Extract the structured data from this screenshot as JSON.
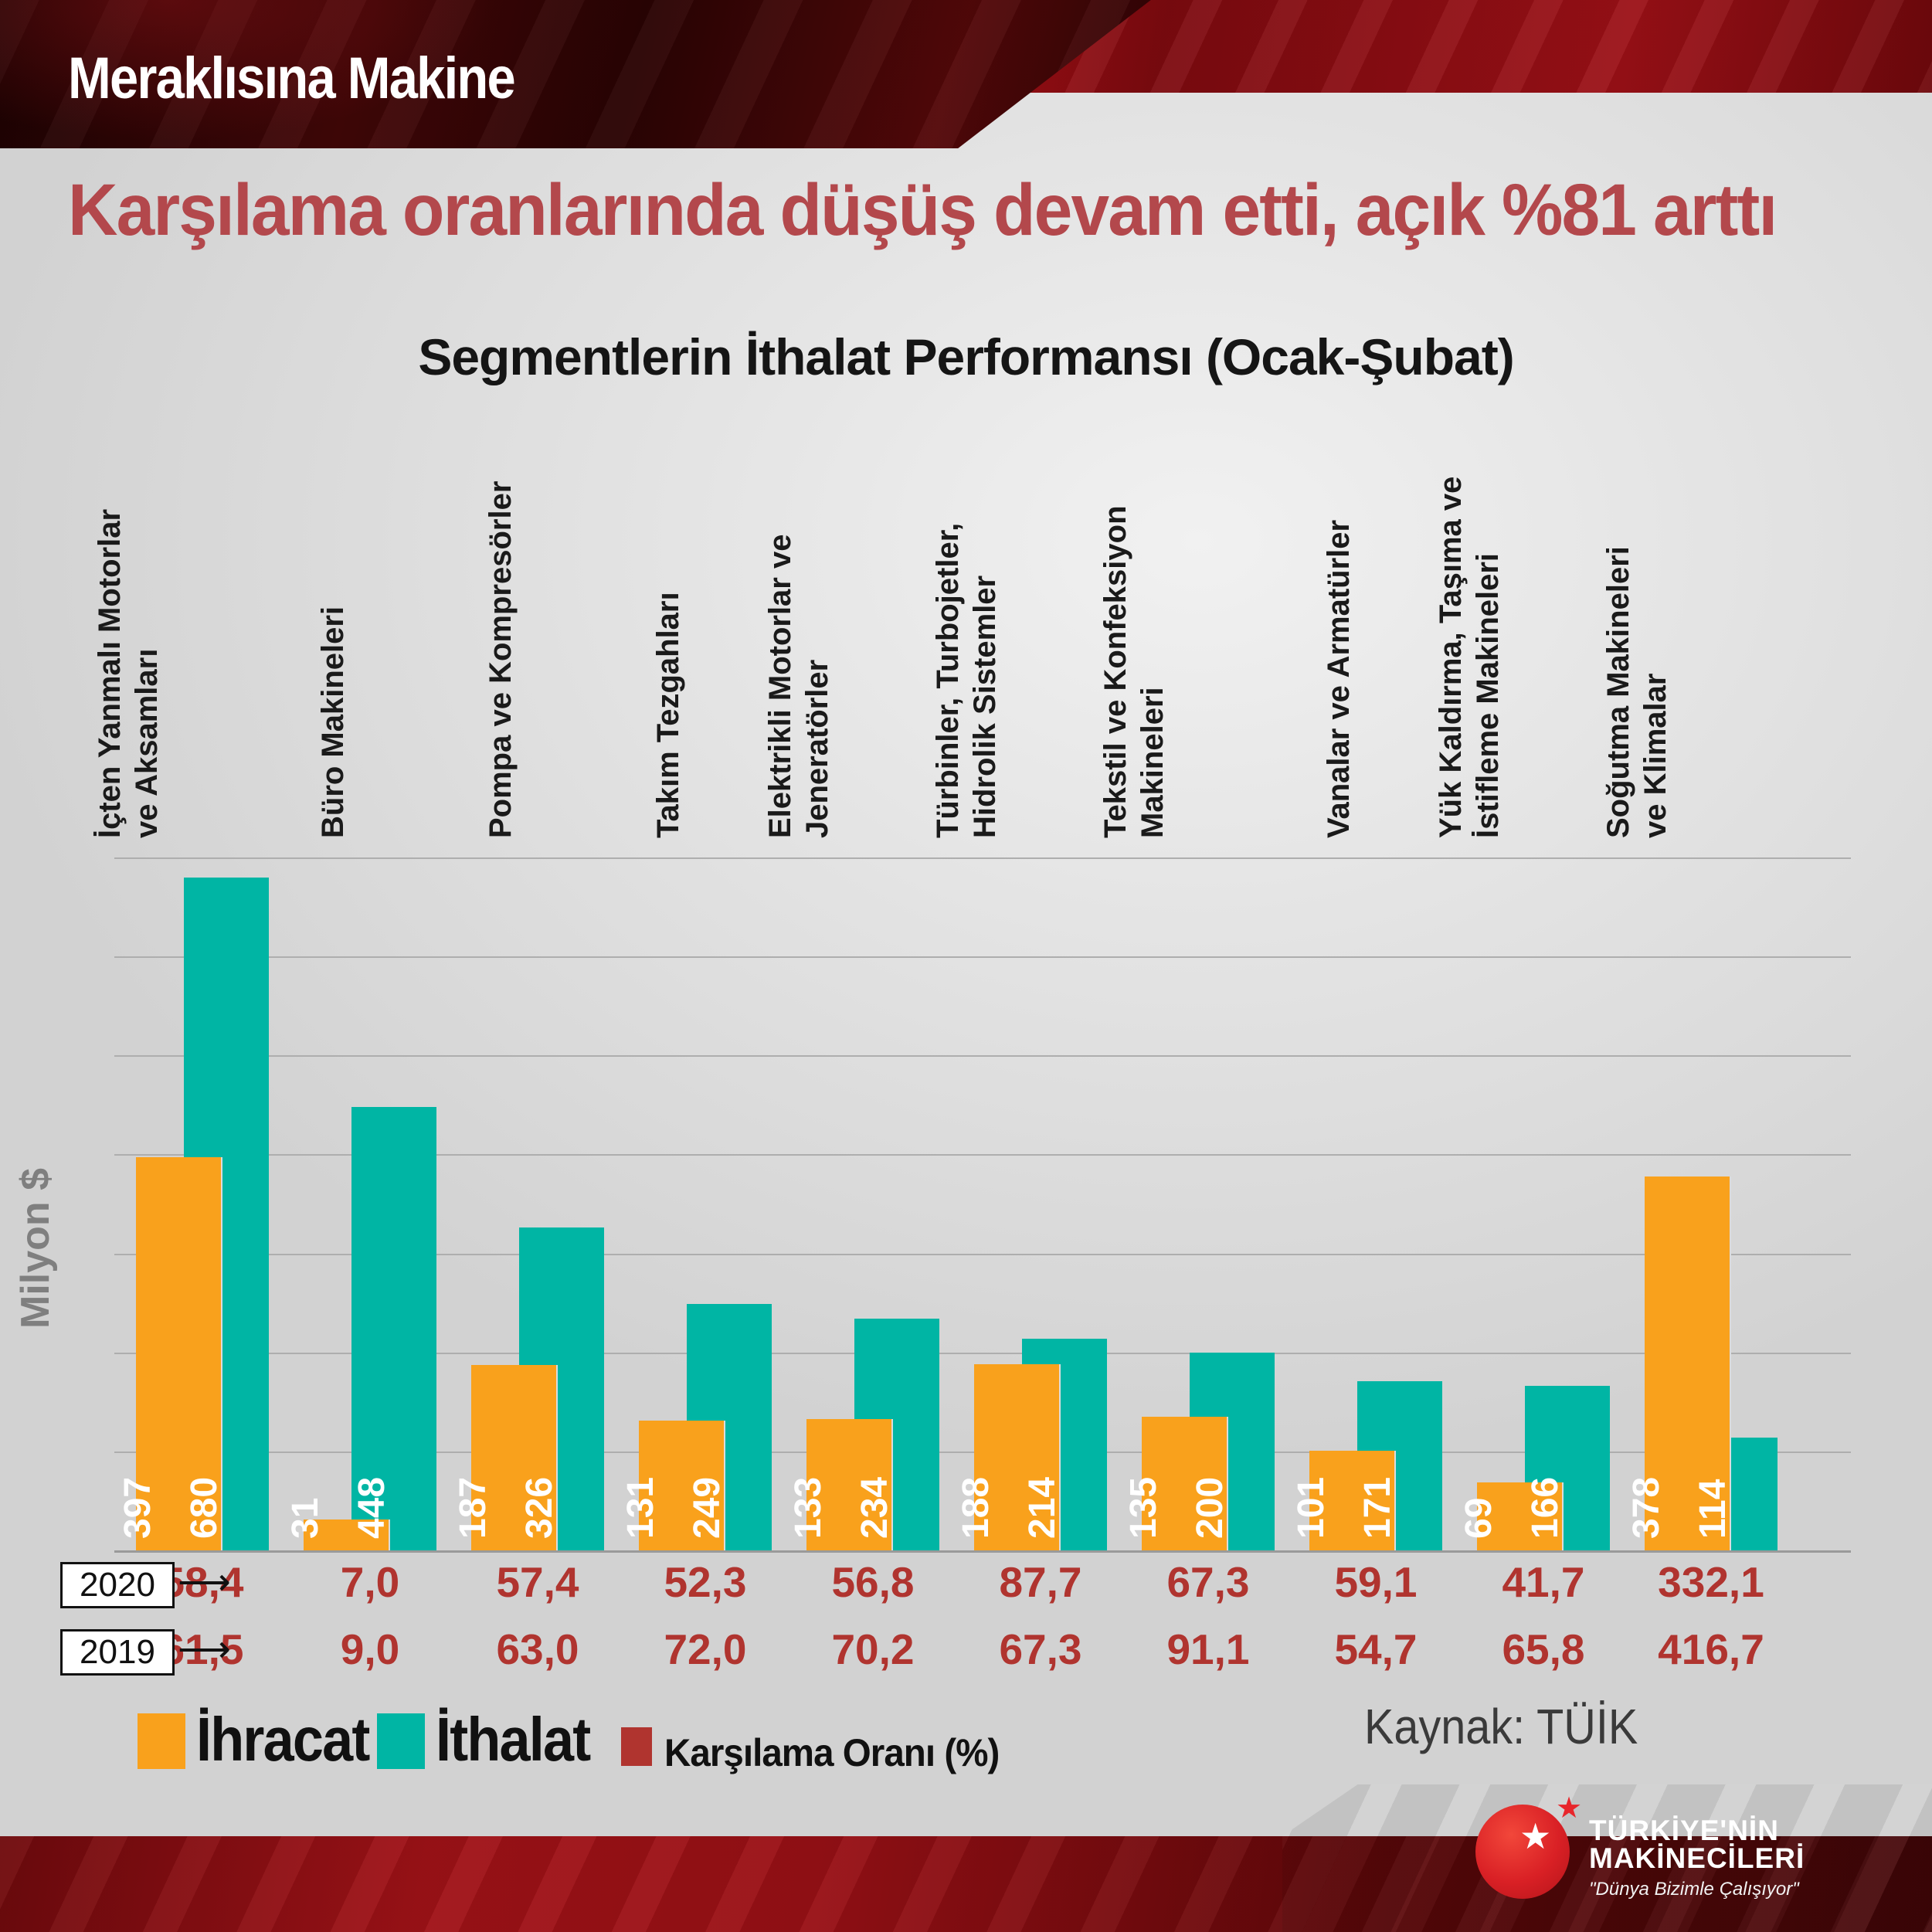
{
  "header": {
    "brand": "Meraklısına Makine"
  },
  "headline": "Karşılama oranlarında düşüş devam etti, açık %81 arttı",
  "chart_data": {
    "type": "bar",
    "title": "Segmentlerin İthalat Performansı (Ocak-Şubat)",
    "y_axis_label": "Milyon $",
    "y_axis": {
      "min": 0,
      "max": 700,
      "gridline_step": 100,
      "grid": true,
      "tick_labels_shown": false
    },
    "legend_position": "bottom-left",
    "categories": [
      [
        "İçten Yanmalı Motorlar",
        "ve Aksamları"
      ],
      [
        "Büro Makineleri"
      ],
      [
        "Pompa ve Kompresörler"
      ],
      [
        "Takım Tezgahları"
      ],
      [
        "Elektrikli Motorlar ve",
        "Jeneratörler"
      ],
      [
        "Türbinler, Turbojetler,",
        "Hidrolik Sistemler"
      ],
      [
        "Tekstil ve Konfeksiyon",
        "Makineleri"
      ],
      [
        "Vanalar ve Armatürler"
      ],
      [
        "Yük Kaldırma, Taşıma ve",
        "İstifleme Makineleri"
      ],
      [
        "Soğutma Makineleri",
        "ve Klimalar"
      ]
    ],
    "series": [
      {
        "name": "İhracat",
        "color": "#F9A11C",
        "values": [
          397,
          31,
          187,
          131,
          133,
          188,
          135,
          101,
          69,
          378
        ]
      },
      {
        "name": "İthalat",
        "color": "#00B5A4",
        "values": [
          680,
          448,
          326,
          249,
          234,
          214,
          200,
          171,
          166,
          114
        ]
      }
    ],
    "ratio_rows": [
      {
        "year": "2020",
        "values": [
          "58,4",
          "7,0",
          "57,4",
          "52,3",
          "56,8",
          "87,7",
          "67,3",
          "59,1",
          "41,7",
          "332,1"
        ]
      },
      {
        "year": "2019",
        "values": [
          "61,5",
          "9,0",
          "63,0",
          "72,0",
          "70,2",
          "67,3",
          "91,1",
          "54,7",
          "65,8",
          "416,7"
        ]
      }
    ]
  },
  "legend": {
    "items": [
      {
        "label": "İhracat",
        "color": "#F9A11C"
      },
      {
        "label": "İthalat",
        "color": "#00B5A4"
      },
      {
        "label": "Karşılama Oranı (%)",
        "color": "#B0342F"
      }
    ]
  },
  "source": "Kaynak: TÜİK",
  "logo": {
    "name_line1": "TÜRKİYE'NİN",
    "name_line2": "MAKİNECİLERİ",
    "tagline": "\"Dünya Bizimle Çalışıyor\"",
    "white_star_icon": "★",
    "red_star_icon": "★"
  },
  "colors": {
    "headline_red": "#B3484C",
    "ratio_red": "#B0342F",
    "orange": "#F9A11C",
    "teal": "#00B5A4",
    "band_bright_red": "#A01218",
    "band_dark_red": "#2B0304"
  }
}
